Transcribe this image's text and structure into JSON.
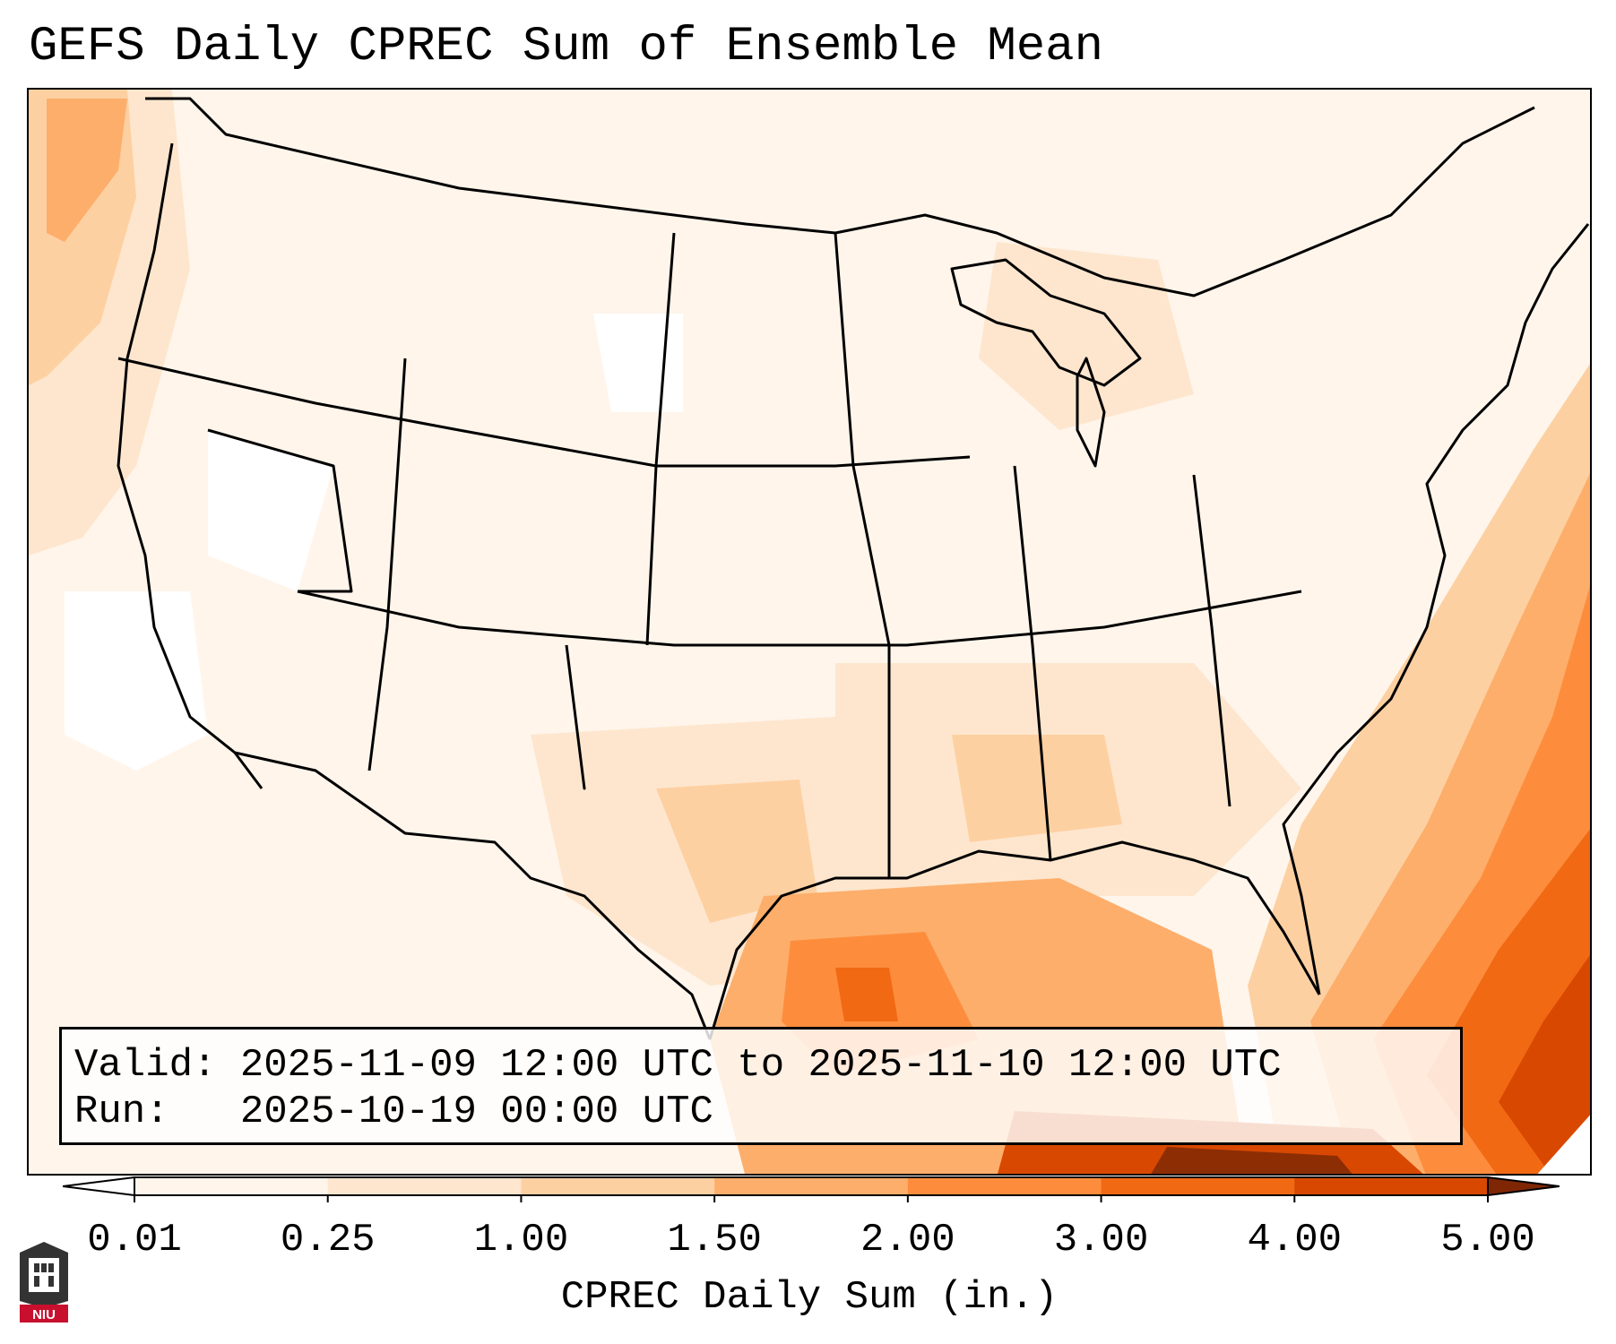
{
  "title": "GEFS Daily CPREC Sum of Ensemble Mean",
  "info": {
    "valid_label": "Valid:",
    "valid_value": "2025-11-09 12:00 UTC to 2025-11-10 12:00 UTC",
    "run_label": "Run:",
    "run_value": "2025-10-19 00:00 UTC"
  },
  "colorbar": {
    "label": "CPREC Daily Sum (in.)",
    "ticks": [
      "0.01",
      "0.25",
      "1.00",
      "1.50",
      "2.00",
      "3.00",
      "4.00",
      "5.00"
    ],
    "colors": [
      "#fff5eb",
      "#fee6ce",
      "#fdd0a2",
      "#fdae6b",
      "#fd8d3c",
      "#f16913",
      "#d94801",
      "#8c2d04"
    ],
    "under_color": "#ffffff",
    "over_color": "#7f2704",
    "extend": "both"
  },
  "logo": {
    "name": "university-logo",
    "text": "NIU",
    "color": "#c8102e"
  },
  "map": {
    "region": "Contiguous United States",
    "projection": "Lambert Conformal",
    "borders": "state and national boundaries"
  }
}
